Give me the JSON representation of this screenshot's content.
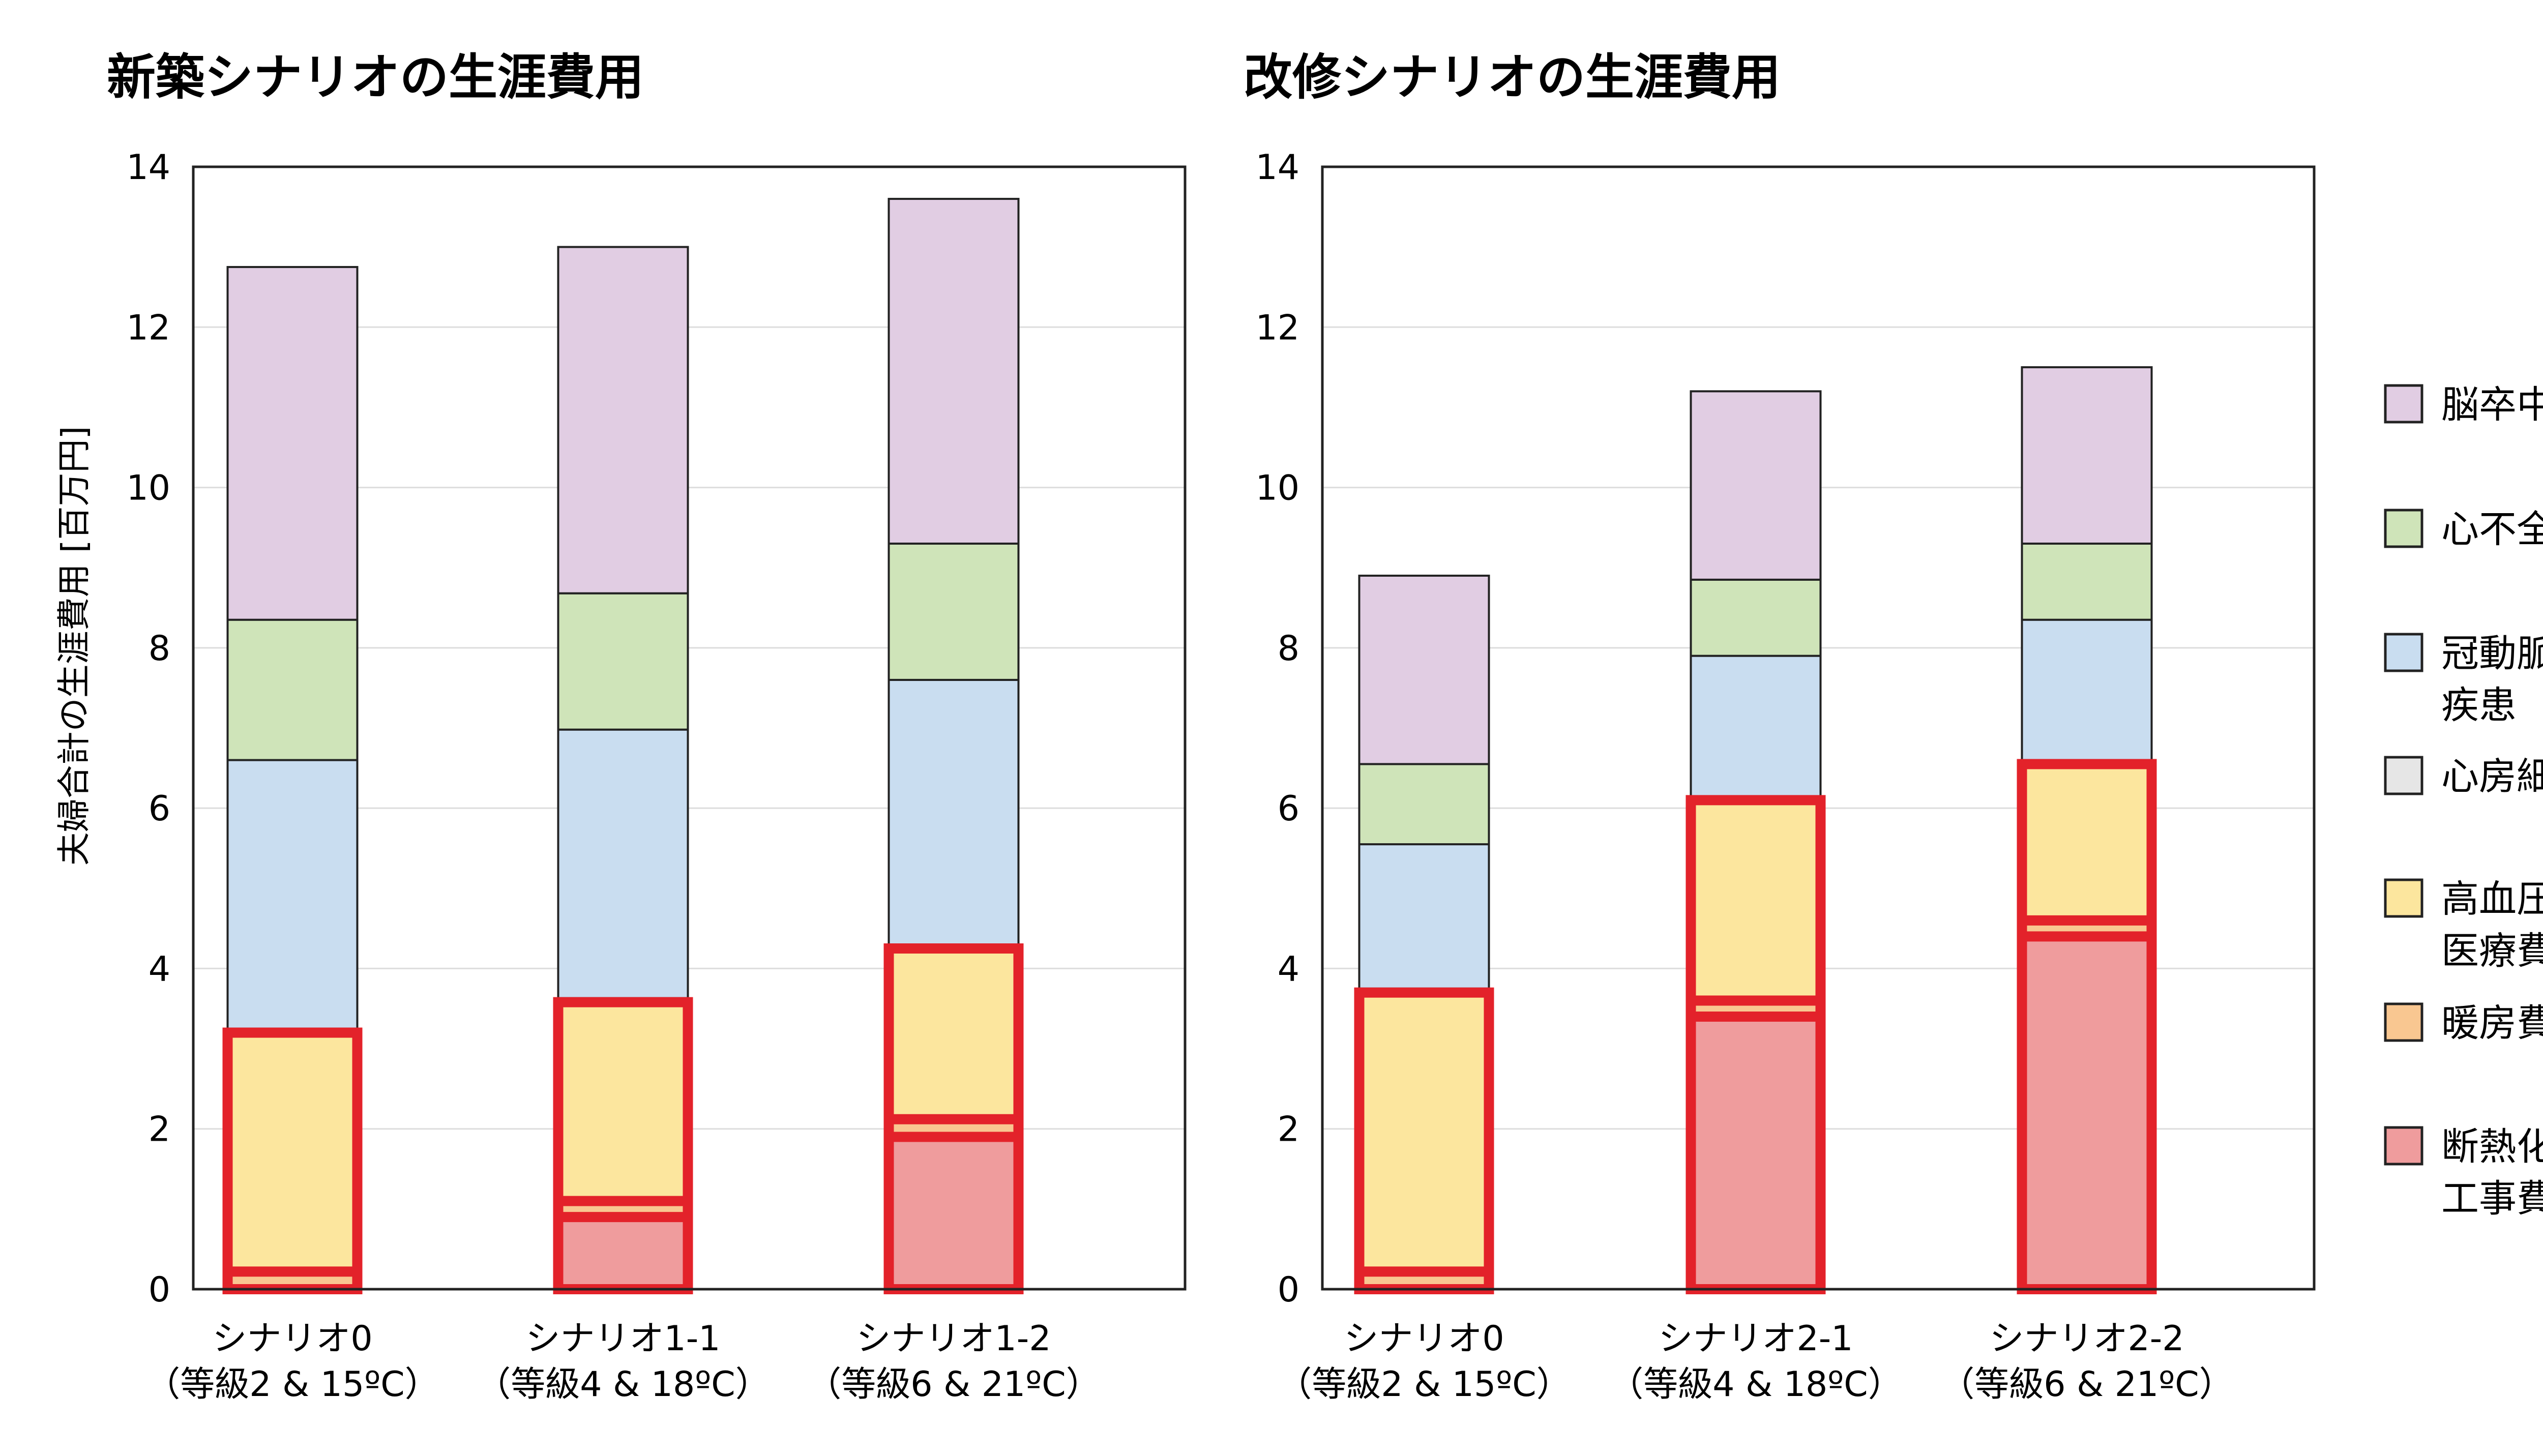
{
  "chart_data": [
    {
      "type": "bar",
      "stacked": true,
      "title": "新築シナリオの生涯費用",
      "ylabel": "夫婦合計の生涯費用 [百万円]",
      "ylim": [
        0,
        14
      ],
      "yticks": [
        0,
        2,
        4,
        6,
        8,
        10,
        12,
        14
      ],
      "grid": true,
      "categories": [
        {
          "line1": "シナリオ0",
          "line2": "（等級2 & 15ºC）"
        },
        {
          "line1": "シナリオ1-1",
          "line2": "（等級4 & 18ºC）"
        },
        {
          "line1": "シナリオ1-2",
          "line2": "（等級6 & 21ºC）"
        }
      ],
      "series": [
        {
          "name": "断熱化工事費",
          "values": [
            0.0,
            0.9,
            1.9
          ]
        },
        {
          "name": "暖房費",
          "values": [
            0.22,
            0.2,
            0.22
          ]
        },
        {
          "name": "高血圧医療費",
          "values": [
            2.98,
            2.48,
            2.13
          ]
        },
        {
          "name": "心房細動",
          "values": [
            0.05,
            0.05,
            0.05
          ]
        },
        {
          "name": "冠動脈疾患",
          "values": [
            3.35,
            3.35,
            3.3
          ]
        },
        {
          "name": "心不全",
          "values": [
            1.75,
            1.7,
            1.7
          ]
        },
        {
          "name": "脳卒中",
          "values": [
            4.4,
            4.32,
            4.3
          ]
        }
      ],
      "highlighted_series": [
        "断熱化工事費",
        "暖房費",
        "高血圧医療費"
      ]
    },
    {
      "type": "bar",
      "stacked": true,
      "title": "改修シナリオの生涯費用",
      "ylabel": "",
      "ylim": [
        0,
        14
      ],
      "yticks": [
        0,
        2,
        4,
        6,
        8,
        10,
        12,
        14
      ],
      "grid": true,
      "categories": [
        {
          "line1": "シナリオ0",
          "line2": "（等級2 & 15ºC）"
        },
        {
          "line1": "シナリオ2-1",
          "line2": "（等級4 & 18ºC）"
        },
        {
          "line1": "シナリオ2-2",
          "line2": "（等級6 & 21ºC）"
        }
      ],
      "series": [
        {
          "name": "断熱化工事費",
          "values": [
            0.0,
            3.4,
            4.4
          ]
        },
        {
          "name": "暖房費",
          "values": [
            0.22,
            0.2,
            0.2
          ]
        },
        {
          "name": "高血圧医療費",
          "values": [
            3.48,
            2.5,
            1.95
          ]
        },
        {
          "name": "心房細動",
          "values": [
            0.05,
            0.05,
            0.05
          ]
        },
        {
          "name": "冠動脈疾患",
          "values": [
            1.8,
            1.75,
            1.75
          ]
        },
        {
          "name": "心不全",
          "values": [
            1.0,
            0.95,
            0.95
          ]
        },
        {
          "name": "脳卒中",
          "values": [
            2.35,
            2.35,
            2.2
          ]
        }
      ],
      "highlighted_series": [
        "断熱化工事費",
        "暖房費",
        "高血圧医療費"
      ]
    }
  ],
  "legend": {
    "placement": "right",
    "items": [
      {
        "lines": [
          "脳卒中"
        ],
        "color": "#e1cde3"
      },
      {
        "lines": [
          "心不全"
        ],
        "color": "#cfe4b9"
      },
      {
        "lines": [
          "冠動脈",
          "疾患"
        ],
        "color": "#c9ddf0"
      },
      {
        "lines": [
          "心房細動"
        ],
        "color": "#e6e6e6"
      },
      {
        "lines": [
          "高血圧",
          "医療費"
        ],
        "color": "#fce69e"
      },
      {
        "lines": [
          "暖房費"
        ],
        "color": "#f9c791"
      },
      {
        "lines": [
          "断熱化",
          "工事費"
        ],
        "color": "#ef9c9d"
      }
    ]
  },
  "colors": {
    "断熱化工事費": "#ef9c9d",
    "暖房費": "#f9c791",
    "高血圧医療費": "#fce69e",
    "心房細動": "#e6e6e6",
    "冠動脈疾患": "#c9ddf0",
    "心不全": "#cfe4b9",
    "脳卒中": "#e1cde3",
    "highlight_outline": "#e3222a",
    "grid": "#dddddd"
  }
}
